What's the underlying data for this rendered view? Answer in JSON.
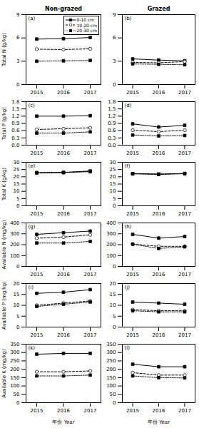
{
  "chart_data": [
    {
      "type": "line",
      "title": "Non-grazed",
      "annotation": "(a)",
      "ylabel": "Total N (g/kg)",
      "x": [
        2015,
        2016,
        2017
      ],
      "xlim": [
        2014.6,
        2017.4
      ],
      "xticks": [
        2015,
        2016,
        2017
      ],
      "ylim": [
        0,
        9
      ],
      "yticks": [
        0,
        3,
        6,
        9
      ],
      "legend": "upper right",
      "series": [
        {
          "name": "0-10 cm",
          "color": "black",
          "marker": "square",
          "line_style": "solid",
          "values": [
            5.85,
            5.9,
            6.05
          ],
          "error": [
            0.18,
            0.18,
            0.18
          ]
        },
        {
          "name": "10-20 cm",
          "color": "black",
          "marker": "circle_open",
          "line_style": "dashed",
          "values": [
            4.55,
            4.5,
            4.6
          ],
          "error": [
            0.12,
            0.12,
            0.12
          ]
        },
        {
          "name": "20-30 cm",
          "color": "black",
          "marker": "square",
          "line_style": "dotted",
          "values": [
            3.0,
            3.05,
            3.1
          ],
          "error": [
            0.1,
            0.1,
            0.1
          ]
        }
      ]
    },
    {
      "type": "line",
      "title": "Grazed",
      "annotation": "(b)",
      "x": [
        2015,
        2016,
        2017
      ],
      "xlim": [
        2014.6,
        2017.4
      ],
      "xticks": [
        2015,
        2016,
        2017
      ],
      "ylim": [
        0,
        9
      ],
      "yticks": [
        0,
        3,
        6,
        9
      ],
      "series": [
        {
          "name": "0-10 cm",
          "color": "black",
          "marker": "square",
          "line_style": "solid",
          "values": [
            3.3,
            3.15,
            3.05
          ],
          "error": [
            0.12,
            0.12,
            0.12
          ]
        },
        {
          "name": "10-20 cm",
          "color": "black",
          "marker": "circle_open",
          "line_style": "dashed",
          "values": [
            2.85,
            2.8,
            2.95
          ],
          "error": [
            0.1,
            0.1,
            0.1
          ]
        },
        {
          "name": "20-30 cm",
          "color": "black",
          "marker": "square",
          "line_style": "dotted",
          "values": [
            2.65,
            2.6,
            2.55
          ],
          "error": [
            0.08,
            0.08,
            0.08
          ]
        }
      ]
    },
    {
      "type": "line",
      "annotation": "(c)",
      "ylabel": "Total P (g/kg)",
      "x": [
        2015,
        2016,
        2017
      ],
      "xlim": [
        2014.6,
        2017.4
      ],
      "xticks": [
        2015,
        2016,
        2017
      ],
      "ylim": [
        0.0,
        1.8
      ],
      "yticks": [
        {
          "value": 0.0,
          "label": "0.0"
        },
        0.3,
        0.6,
        0.9,
        1.2,
        1.5,
        1.8
      ],
      "series": [
        {
          "name": "0-10 cm",
          "color": "black",
          "marker": "square",
          "line_style": "solid",
          "values": [
            1.2,
            1.2,
            1.22
          ],
          "error": [
            0.06,
            0.06,
            0.06
          ]
        },
        {
          "name": "10-20 cm",
          "color": "black",
          "marker": "circle_open",
          "line_style": "dashed",
          "values": [
            0.65,
            0.68,
            0.72
          ],
          "error": [
            0.05,
            0.05,
            0.05
          ]
        },
        {
          "name": "20-30 cm",
          "color": "black",
          "marker": "square",
          "line_style": "dotted",
          "values": [
            0.5,
            0.5,
            0.55
          ],
          "error": [
            0.04,
            0.04,
            0.04
          ]
        }
      ]
    },
    {
      "type": "line",
      "annotation": "(d)",
      "x": [
        2015,
        2016,
        2017
      ],
      "xlim": [
        2014.6,
        2017.4
      ],
      "xticks": [
        2015,
        2016,
        2017
      ],
      "ylim": [
        0.0,
        1.8
      ],
      "yticks": [
        {
          "value": 0.0,
          "label": "0.0"
        },
        0.3,
        0.6,
        0.9,
        1.2,
        1.5,
        1.8
      ],
      "series": [
        {
          "name": "0-10 cm",
          "color": "black",
          "marker": "square",
          "line_style": "solid",
          "values": [
            0.88,
            0.75,
            0.82
          ],
          "error": [
            0.06,
            0.06,
            0.06
          ]
        },
        {
          "name": "10-20 cm",
          "color": "black",
          "marker": "circle_open",
          "line_style": "dashed",
          "values": [
            0.62,
            0.56,
            0.62
          ],
          "error": [
            0.04,
            0.04,
            0.04
          ]
        },
        {
          "name": "20-30 cm",
          "color": "black",
          "marker": "square",
          "line_style": "dotted",
          "values": [
            0.42,
            0.38,
            0.4
          ],
          "error": [
            0.03,
            0.03,
            0.03
          ]
        }
      ]
    },
    {
      "type": "line",
      "annotation": "(e)",
      "ylabel": "Total K (g/kg)",
      "x": [
        2015,
        2016,
        2017
      ],
      "xlim": [
        2014.6,
        2017.4
      ],
      "xticks": [
        2015,
        2016,
        2017
      ],
      "ylim": [
        0,
        30
      ],
      "yticks": [
        0,
        5,
        10,
        15,
        20,
        25,
        30
      ],
      "series": [
        {
          "name": "0-10 cm",
          "color": "black",
          "marker": "square",
          "line_style": "solid",
          "values": [
            22.8,
            23.0,
            24.0
          ],
          "error": [
            0.4,
            0.4,
            0.4
          ]
        },
        {
          "name": "10-20 cm",
          "color": "black",
          "marker": "circle_open",
          "line_style": "dashed",
          "values": [
            22.8,
            23.0,
            23.8
          ],
          "error": [
            0.4,
            0.4,
            0.4
          ]
        },
        {
          "name": "20-30 cm",
          "color": "black",
          "marker": "square",
          "line_style": "dotted",
          "values": [
            22.7,
            22.9,
            23.5
          ],
          "error": [
            0.4,
            0.4,
            0.4
          ]
        }
      ]
    },
    {
      "type": "line",
      "annotation": "(f)",
      "x": [
        2015,
        2016,
        2017
      ],
      "xlim": [
        2014.6,
        2017.4
      ],
      "xticks": [
        2015,
        2016,
        2017
      ],
      "ylim": [
        0,
        30
      ],
      "yticks": [
        0,
        5,
        10,
        15,
        20,
        25,
        30
      ],
      "series": [
        {
          "name": "0-10 cm",
          "color": "black",
          "marker": "square",
          "line_style": "solid",
          "values": [
            22.2,
            21.8,
            22.3
          ],
          "error": [
            0.3,
            0.3,
            0.3
          ]
        },
        {
          "name": "10-20 cm",
          "color": "black",
          "marker": "circle_open",
          "line_style": "dashed",
          "values": [
            22.2,
            21.8,
            22.2
          ],
          "error": [
            0.3,
            0.3,
            0.3
          ]
        },
        {
          "name": "20-30 cm",
          "color": "black",
          "marker": "square",
          "line_style": "dotted",
          "values": [
            22.0,
            21.7,
            22.1
          ],
          "error": [
            0.3,
            0.3,
            0.3
          ]
        }
      ]
    },
    {
      "type": "line",
      "annotation": "(g)",
      "ylabel": "Available N (mg/kg)",
      "x": [
        2015,
        2016,
        2017
      ],
      "xlim": [
        2014.6,
        2017.4
      ],
      "xticks": [
        2015,
        2016,
        2017
      ],
      "ylim": [
        0,
        400
      ],
      "yticks": [
        0,
        100,
        200,
        300,
        400
      ],
      "series": [
        {
          "name": "0-10 cm",
          "color": "black",
          "marker": "square",
          "line_style": "solid",
          "values": [
            295,
            310,
            325
          ],
          "error": [
            12,
            12,
            12
          ]
        },
        {
          "name": "10-20 cm",
          "color": "black",
          "marker": "circle_open",
          "line_style": "dashed",
          "values": [
            260,
            270,
            290
          ],
          "error": [
            10,
            10,
            10
          ]
        },
        {
          "name": "20-30 cm",
          "color": "black",
          "marker": "square",
          "line_style": "dotted",
          "values": [
            215,
            215,
            230
          ],
          "error": [
            8,
            8,
            8
          ]
        }
      ]
    },
    {
      "type": "line",
      "annotation": "(h)",
      "x": [
        2015,
        2016,
        2017
      ],
      "xlim": [
        2014.6,
        2017.4
      ],
      "xticks": [
        2015,
        2016,
        2017
      ],
      "ylim": [
        0,
        400
      ],
      "yticks": [
        0,
        100,
        200,
        300,
        400
      ],
      "series": [
        {
          "name": "0-10 cm",
          "color": "black",
          "marker": "square",
          "line_style": "solid",
          "values": [
            295,
            260,
            275
          ],
          "error": [
            15,
            15,
            15
          ]
        },
        {
          "name": "10-20 cm",
          "color": "black",
          "marker": "circle_open",
          "line_style": "dashed",
          "values": [
            205,
            185,
            185
          ],
          "error": [
            12,
            12,
            12
          ]
        },
        {
          "name": "20-30 cm",
          "color": "black",
          "marker": "square",
          "line_style": "dotted",
          "values": [
            205,
            165,
            180
          ],
          "error": [
            10,
            10,
            10
          ]
        }
      ]
    },
    {
      "type": "line",
      "annotation": "(i)",
      "ylabel": "Available P (mg/kg)",
      "x": [
        2015,
        2016,
        2017
      ],
      "xlim": [
        2014.6,
        2017.4
      ],
      "xticks": [
        2015,
        2016,
        2017
      ],
      "ylim": [
        0,
        20
      ],
      "yticks": [
        0,
        5,
        10,
        15,
        20
      ],
      "series": [
        {
          "name": "0-10 cm",
          "color": "black",
          "marker": "square",
          "line_style": "solid",
          "values": [
            15.5,
            16.0,
            17.2
          ],
          "error": [
            0.6,
            0.6,
            0.6
          ]
        },
        {
          "name": "10-20 cm",
          "color": "black",
          "marker": "circle_open",
          "line_style": "dashed",
          "values": [
            10.0,
            11.0,
            12.0
          ],
          "error": [
            0.5,
            0.5,
            0.5
          ]
        },
        {
          "name": "20-30 cm",
          "color": "black",
          "marker": "square",
          "line_style": "dotted",
          "values": [
            9.5,
            10.5,
            11.5
          ],
          "error": [
            0.4,
            0.4,
            0.4
          ]
        }
      ]
    },
    {
      "type": "line",
      "annotation": "(j)",
      "x": [
        2015,
        2016,
        2017
      ],
      "xlim": [
        2014.6,
        2017.4
      ],
      "xticks": [
        2015,
        2016,
        2017
      ],
      "ylim": [
        0,
        20
      ],
      "yticks": [
        0,
        5,
        10,
        15,
        20
      ],
      "series": [
        {
          "name": "0-10 cm",
          "color": "black",
          "marker": "square",
          "line_style": "solid",
          "values": [
            11.5,
            11.0,
            10.5
          ],
          "error": [
            0.5,
            0.5,
            0.5
          ]
        },
        {
          "name": "10-20 cm",
          "color": "black",
          "marker": "circle_open",
          "line_style": "dashed",
          "values": [
            8.0,
            7.5,
            7.5
          ],
          "error": [
            0.3,
            0.3,
            0.3
          ]
        },
        {
          "name": "20-30 cm",
          "color": "black",
          "marker": "square",
          "line_style": "dotted",
          "values": [
            7.5,
            7.0,
            7.0
          ],
          "error": [
            0.3,
            0.3,
            0.3
          ]
        }
      ]
    },
    {
      "type": "line",
      "annotation": "(k)",
      "ylabel": "Available K (mg/kg)",
      "xlabel": "年份 Year",
      "x": [
        2015,
        2016,
        2017
      ],
      "xlim": [
        2014.6,
        2017.4
      ],
      "xticks": [
        2015,
        2016,
        2017
      ],
      "ylim": [
        0,
        350
      ],
      "yticks": [
        0,
        50,
        100,
        150,
        200,
        250,
        300,
        350
      ],
      "series": [
        {
          "name": "0-10 cm",
          "color": "black",
          "marker": "square",
          "line_style": "solid",
          "values": [
            290,
            295,
            295
          ],
          "error": [
            8,
            8,
            8
          ]
        },
        {
          "name": "10-20 cm",
          "color": "black",
          "marker": "circle_open",
          "line_style": "dashed",
          "values": [
            185,
            185,
            190
          ],
          "error": [
            6,
            6,
            6
          ]
        },
        {
          "name": "20-30 cm",
          "color": "black",
          "marker": "square",
          "line_style": "dotted",
          "values": [
            160,
            160,
            165
          ],
          "error": [
            5,
            5,
            5
          ]
        }
      ]
    },
    {
      "type": "line",
      "annotation": "(l)",
      "xlabel": "年份 Year",
      "x": [
        2015,
        2016,
        2017
      ],
      "xlim": [
        2014.6,
        2017.4
      ],
      "xticks": [
        2015,
        2016,
        2017
      ],
      "ylim": [
        0,
        350
      ],
      "yticks": [
        0,
        50,
        100,
        150,
        200,
        250,
        300,
        350
      ],
      "series": [
        {
          "name": "0-10 cm",
          "color": "black",
          "marker": "square",
          "line_style": "solid",
          "values": [
            230,
            215,
            215
          ],
          "error": [
            8,
            8,
            8
          ]
        },
        {
          "name": "10-20 cm",
          "color": "black",
          "marker": "circle_open",
          "line_style": "dashed",
          "values": [
            180,
            165,
            165
          ],
          "error": [
            6,
            6,
            6
          ]
        },
        {
          "name": "20-30 cm",
          "color": "black",
          "marker": "square",
          "line_style": "dotted",
          "values": [
            160,
            150,
            148
          ],
          "error": [
            5,
            5,
            5
          ]
        }
      ]
    }
  ]
}
